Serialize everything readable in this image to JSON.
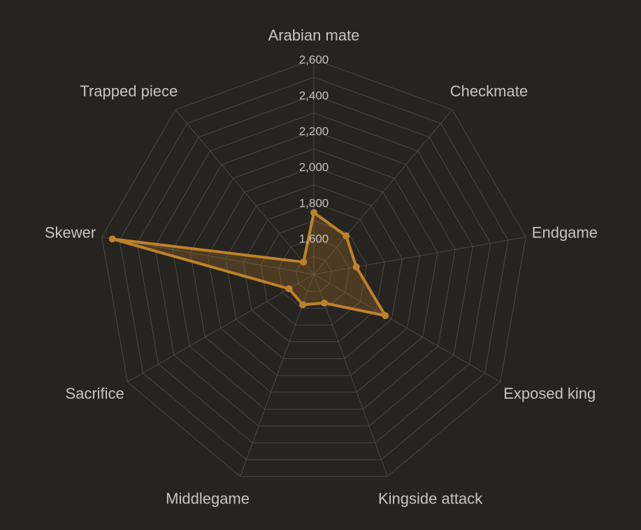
{
  "chart_data": {
    "type": "radar",
    "title": "",
    "categories": [
      "Arabian mate",
      "Checkmate",
      "Endgame",
      "Exposed king",
      "Kingside attack",
      "Middlegame",
      "Sacrifice",
      "Skewer",
      "Trapped piece"
    ],
    "ticks": [
      "1,600",
      "1,800",
      "2,000",
      "2,200",
      "2,400",
      "2,600"
    ],
    "range": [
      1400,
      2600
    ],
    "series": [
      {
        "values": [
          1745,
          1680,
          1640,
          1860,
          1570,
          1580,
          1560,
          2540,
          1490
        ]
      }
    ],
    "grid": true,
    "legend": "none",
    "colors": {
      "series": "#bf8228",
      "fill": "rgba(191,128,40,0.25)",
      "grid": "#4a4845",
      "background": "#262421"
    }
  }
}
